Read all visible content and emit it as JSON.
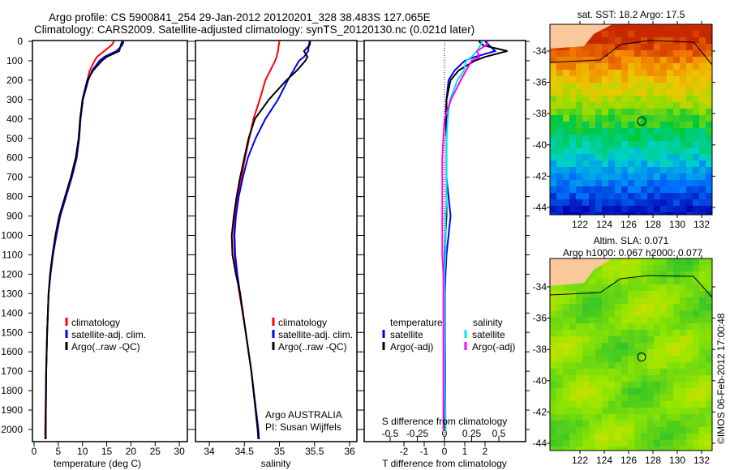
{
  "header": {
    "line1": "Argo profile: CS 5900841_254 29-Jan-2012 20120201_328 38.483S 127.065E",
    "line2": "Climatology: CARS2009. Satellite-adjusted climatology: synTS_20120130.nc (0.021d later)"
  },
  "colors": {
    "climatology": "#ff0000",
    "satellite": "#0000ff",
    "argo": "#000000",
    "sal_satellite": "#00e5ee",
    "sal_argo": "#ff00ff",
    "land": "#f9c89b"
  },
  "chart_data": [
    {
      "type": "line",
      "name": "temperature",
      "xlabel": "temperature (deg C)",
      "xlim": [
        -2,
        31
      ],
      "ylim": [
        0,
        2050
      ],
      "xticks": [
        "0",
        "5",
        "10",
        "15",
        "20",
        "25",
        "30"
      ],
      "xtick_values": [
        0,
        5,
        10,
        15,
        20,
        25,
        30
      ],
      "yticks": [
        "0",
        "100",
        "200",
        "300",
        "400",
        "500",
        "600",
        "700",
        "800",
        "900",
        "1000",
        "1100",
        "1200",
        "1300",
        "1400",
        "1500",
        "1600",
        "1700",
        "1800",
        "1900",
        "2000"
      ],
      "depth": [
        0,
        20,
        50,
        80,
        100,
        150,
        200,
        300,
        400,
        500,
        600,
        700,
        800,
        900,
        1000,
        1100,
        1200,
        1300,
        1500,
        1700,
        2000,
        2050
      ],
      "series": [
        {
          "name": "climatology",
          "values": [
            16.5,
            16,
            14.5,
            13,
            12.5,
            11.5,
            11,
            10,
            9.6,
            9.3,
            8.8,
            7.8,
            6.6,
            5.4,
            4.6,
            3.9,
            3.4,
            3.0,
            2.7,
            2.5,
            2.3,
            2.3
          ]
        },
        {
          "name": "satellite-adj. clim.",
          "values": [
            18.5,
            18.2,
            17,
            14.5,
            13.5,
            12,
            11.2,
            10.1,
            9.6,
            9.3,
            8.8,
            7.8,
            6.6,
            5.4,
            4.6,
            3.9,
            3.4,
            3.0,
            2.7,
            2.5,
            2.4,
            2.4
          ]
        },
        {
          "name": "Argo(..raw -QC)",
          "values": [
            18.2,
            17.9,
            17.6,
            15,
            14,
            12.2,
            11,
            10,
            9.5,
            9.2,
            8.6,
            7.6,
            6.4,
            5.2,
            4.4,
            3.8,
            3.3,
            3.0,
            2.7,
            2.5,
            2.4,
            2.4
          ]
        }
      ],
      "legend": [
        "climatology",
        "satellite-adj. clim.",
        "Argo(..raw -QC)"
      ]
    },
    {
      "type": "line",
      "name": "salinity",
      "xlabel": "salinity",
      "xlim": [
        33.8,
        36.05
      ],
      "ylim": [
        0,
        2050
      ],
      "xticks": [
        "34",
        "34.5",
        "35",
        "35.5",
        "36"
      ],
      "xtick_values": [
        34,
        34.5,
        35,
        35.5,
        36
      ],
      "depth": [
        0,
        20,
        50,
        80,
        100,
        150,
        200,
        300,
        400,
        500,
        600,
        700,
        800,
        900,
        1000,
        1100,
        1200,
        1300,
        1500,
        1700,
        2000,
        2050
      ],
      "series": [
        {
          "name": "climatology",
          "values": [
            35.0,
            34.99,
            34.98,
            34.96,
            34.94,
            34.87,
            34.8,
            34.72,
            34.63,
            34.57,
            34.51,
            34.46,
            34.41,
            34.37,
            34.35,
            34.36,
            34.39,
            34.43,
            34.52,
            34.6,
            34.69,
            34.7
          ]
        },
        {
          "name": "satellite-adj. clim.",
          "values": [
            35.43,
            35.42,
            35.41,
            35.35,
            35.28,
            35.2,
            35.12,
            34.98,
            34.8,
            34.66,
            34.55,
            34.48,
            34.42,
            34.38,
            34.36,
            34.37,
            34.4,
            34.44,
            34.52,
            34.6,
            34.7,
            34.71
          ]
        },
        {
          "name": "Argo(..raw -QC)",
          "values": [
            35.44,
            35.43,
            35.35,
            35.4,
            35.37,
            35.25,
            35.1,
            34.85,
            34.65,
            34.56,
            34.5,
            34.44,
            34.39,
            34.35,
            34.32,
            34.33,
            34.38,
            34.44,
            34.52,
            34.6,
            34.69,
            34.7
          ]
        }
      ],
      "legend": [
        "climatology",
        "satellite-adj. clim.",
        "Argo(..raw -QC)"
      ],
      "annotation": [
        "Argo AUSTRALIA",
        "PI: Susan Wijffels"
      ]
    },
    {
      "type": "line",
      "name": "differences",
      "xlabel": "T difference from climatology",
      "x2label": "S difference from climatology",
      "xlim": [
        -2.6,
        4
      ],
      "ylim": [
        0,
        2050
      ],
      "xticks": [
        "-2",
        "-1",
        "0",
        "1",
        "2"
      ],
      "xtick_values": [
        -2,
        -1,
        0,
        1,
        2
      ],
      "x2ticks": [
        "-0.5",
        "-0.25",
        "0",
        "0.25",
        "0.5"
      ],
      "x2tick_values": [
        -0.5,
        -0.25,
        0,
        0.25,
        0.5
      ],
      "depth": [
        0,
        20,
        50,
        80,
        100,
        150,
        200,
        300,
        400,
        500,
        600,
        700,
        800,
        900,
        1000,
        1100,
        1200,
        1300,
        1500,
        1700,
        2000
      ],
      "series": [
        {
          "name": "temperature satellite",
          "axis": "T",
          "values": [
            2,
            2.2,
            2.5,
            1.5,
            1.0,
            0.5,
            0.2,
            0.1,
            0.05,
            0.1,
            0.1,
            0.1,
            0.2,
            0.3,
            0.2,
            0.1,
            0.05,
            0.02,
            0.02,
            0.03,
            0.05
          ]
        },
        {
          "name": "temperature Argo(-adj)",
          "axis": "T",
          "values": [
            1.7,
            1.9,
            3.1,
            2.0,
            1.5,
            0.7,
            0.3,
            0.1,
            0.1,
            0.1,
            0.1,
            0.1,
            0.1,
            0.1,
            0.05,
            0.02,
            0.0,
            0.0,
            0.0,
            0.0,
            0.0
          ]
        },
        {
          "name": "salinity satellite",
          "axis": "S",
          "values": [
            0.35,
            0.33,
            0.3,
            0.25,
            0.2,
            0.18,
            0.12,
            0.05,
            0.03,
            0.02,
            0.02,
            0.02,
            0.02,
            0.01,
            0.01,
            0.01,
            0.0,
            0.0,
            0.0,
            0.0,
            0.01
          ]
        },
        {
          "name": "salinity Argo(-adj)",
          "axis": "S",
          "values": [
            0.4,
            0.38,
            0.3,
            0.32,
            0.25,
            0.2,
            0.15,
            0.06,
            0.0,
            -0.01,
            -0.02,
            -0.02,
            -0.02,
            -0.02,
            -0.02,
            -0.02,
            -0.01,
            -0.01,
            -0.01,
            -0.01,
            -0.01
          ]
        }
      ],
      "legend": {
        "temperature": "temperature",
        "salinity": "salinity",
        "satellite": "satellite",
        "argo": "Argo(-adj)"
      }
    },
    {
      "type": "heatmap",
      "name": "sst-map",
      "title": "sat. SST: 18.2  Argo: 17.5",
      "xlim": [
        120.5,
        133.8
      ],
      "ylim": [
        -44.4,
        -32.3
      ],
      "xticks": [
        "122",
        "124",
        "126",
        "128",
        "130",
        "132"
      ],
      "xtick_values": [
        122,
        124,
        126,
        128,
        130,
        132
      ],
      "yticks": [
        "-34",
        "-36",
        "-38",
        "-40",
        "-42",
        "-44"
      ],
      "ytick_values": [
        -34,
        -36,
        -38,
        -40,
        -42,
        -44
      ],
      "marker": [
        127.065,
        -38.483
      ]
    },
    {
      "type": "heatmap",
      "name": "sla-map",
      "title1": "Altim. SLA: 0.071",
      "title2": "Argo h1000: 0.067 h2000: 0.077",
      "xlim": [
        120.5,
        133.8
      ],
      "ylim": [
        -44.4,
        -32.3
      ],
      "xticks": [
        "122",
        "124",
        "126",
        "128",
        "130",
        "132"
      ],
      "xtick_values": [
        122,
        124,
        126,
        128,
        130,
        132
      ],
      "yticks": [
        "-34",
        "-36",
        "-38",
        "-40",
        "-42",
        "-44"
      ],
      "ytick_values": [
        -34,
        -36,
        -38,
        -40,
        -42,
        -44
      ],
      "marker": [
        127.065,
        -38.483
      ]
    }
  ],
  "credit": "©IMOS 06-Feb-2012 17:00:48"
}
